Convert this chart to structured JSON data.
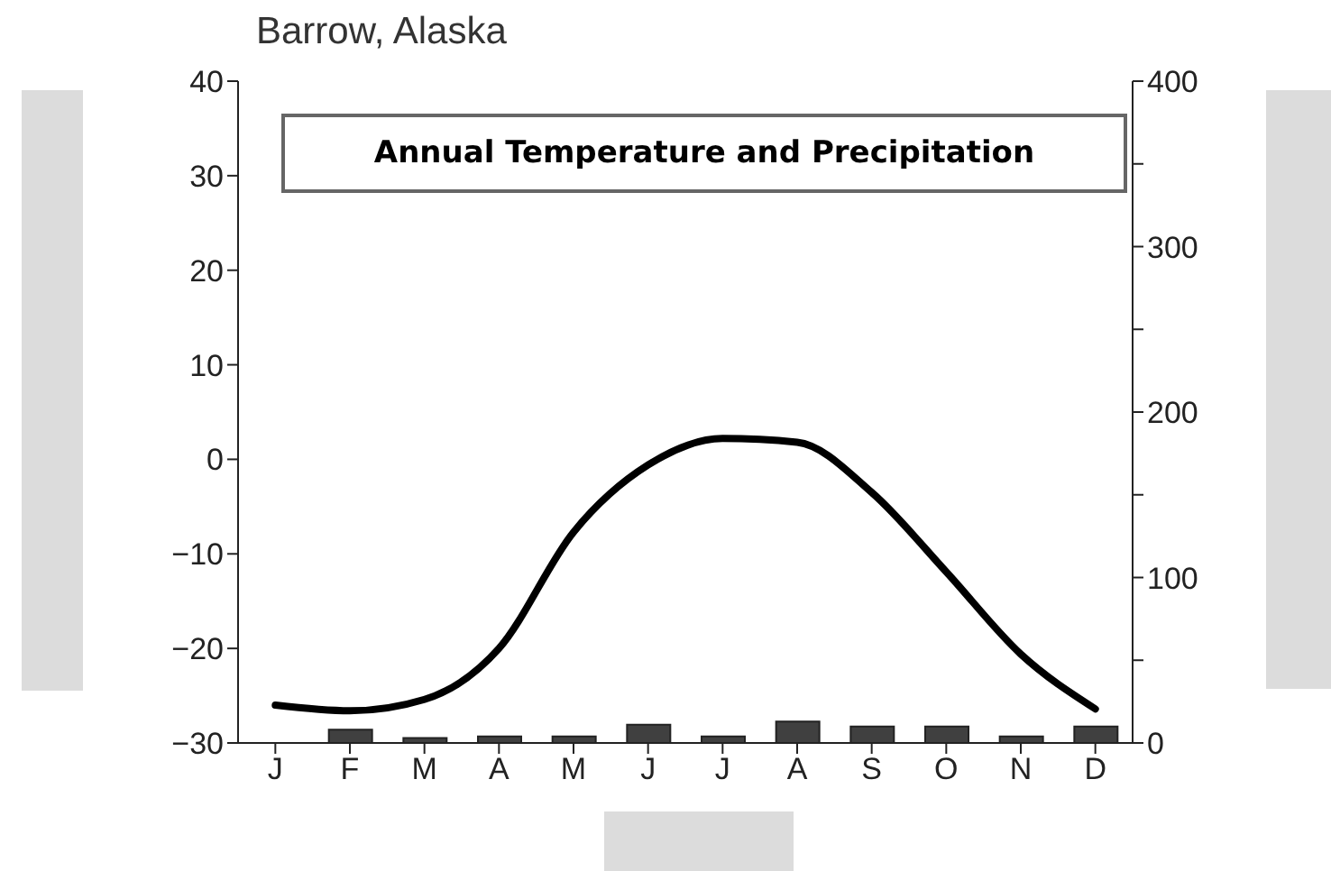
{
  "chart_data": {
    "type": "line",
    "title": "Barrow, Alaska",
    "subtitle": "Annual Temperature and Precipitation",
    "categories": [
      "J",
      "F",
      "M",
      "A",
      "M",
      "J",
      "J",
      "A",
      "S",
      "O",
      "N",
      "D"
    ],
    "ylim": [
      -30,
      40
    ],
    "yticks": [
      {
        "value": -30,
        "label": "−30"
      },
      {
        "value": -20,
        "label": "−20"
      },
      {
        "value": -10,
        "label": "−10"
      },
      0,
      10,
      20,
      30,
      40
    ],
    "y2lim": [
      0,
      400
    ],
    "y2ticks": [
      0,
      {
        "value": 50,
        "label": null
      },
      100,
      {
        "value": 150,
        "label": null
      },
      200,
      {
        "value": 250,
        "label": null
      },
      300,
      {
        "value": 350,
        "label": null
      },
      400
    ],
    "series": [
      {
        "color": "#000000",
        "values": [
          -26,
          -26.6,
          -25.4,
          -20,
          -7.7,
          -0.6,
          2.2,
          1.8,
          -3.5,
          -11.9,
          -20.6,
          -26.4
        ]
      },
      {
        "type": "bar",
        "axis": "y2",
        "color": "#404040",
        "values": [
          0,
          8,
          3,
          4,
          4,
          11,
          4,
          13,
          10,
          10,
          4,
          10
        ]
      }
    ]
  }
}
